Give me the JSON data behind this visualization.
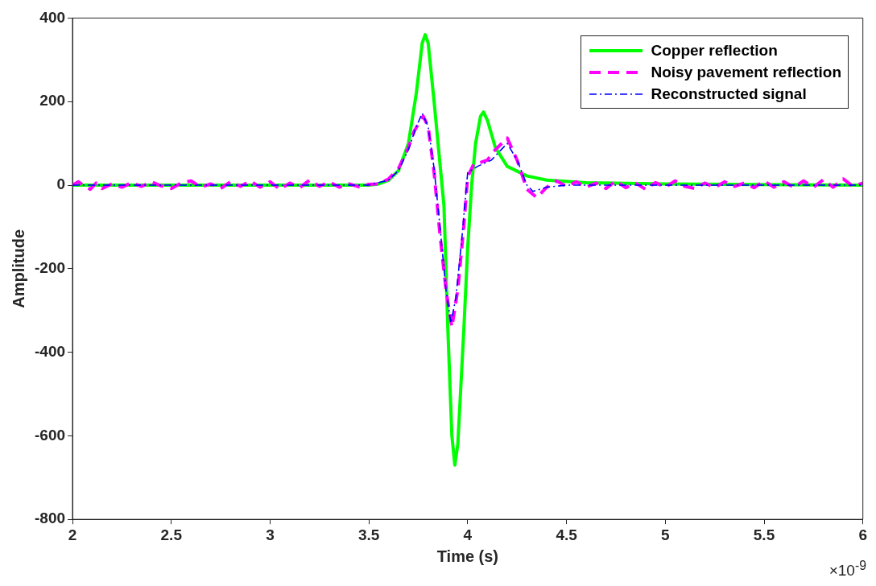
{
  "chart_data": {
    "type": "line",
    "xlabel": "Time (s)",
    "ylabel": "Amplitude",
    "annotations": [
      "×10$^{-9}$"
    ],
    "xlim": [
      2,
      6
    ],
    "xticks": [
      2,
      2.5,
      3,
      3.5,
      4,
      4.5,
      5,
      5.5,
      6
    ],
    "ylim": [
      -800,
      400
    ],
    "yticks": [
      -800,
      -600,
      -400,
      -200,
      0,
      200,
      400
    ],
    "grid": false,
    "legend": "top right",
    "marker": "none",
    "series": [
      {
        "name": "Copper reflection",
        "color": "#00ff00",
        "line_style": "solid",
        "x": [
          2,
          3.5,
          3.55,
          3.6,
          3.65,
          3.7,
          3.74,
          3.77,
          3.785,
          3.8,
          3.83,
          3.86,
          3.88,
          3.9,
          3.92,
          3.935,
          3.95,
          3.98,
          4.0,
          4.02,
          4.04,
          4.065,
          4.08,
          4.1,
          4.14,
          4.2,
          4.3,
          4.4,
          4.6,
          5,
          6
        ],
        "values": [
          0,
          0,
          3,
          12,
          35,
          100,
          220,
          340,
          360,
          340,
          200,
          50,
          -50,
          -350,
          -600,
          -670,
          -620,
          -350,
          -150,
          0,
          100,
          165,
          175,
          155,
          90,
          45,
          22,
          12,
          6,
          3,
          0
        ]
      },
      {
        "name": "Noisy pavement reflection",
        "color": "#ff00ff",
        "line_style": "dashed",
        "x": [
          2,
          2.03,
          2.06,
          2.09,
          2.12,
          2.15,
          2.2,
          2.25,
          2.3,
          2.35,
          2.4,
          2.45,
          2.5,
          2.55,
          2.6,
          2.65,
          2.7,
          2.75,
          2.8,
          2.85,
          2.9,
          2.95,
          3.0,
          3.05,
          3.1,
          3.15,
          3.2,
          3.25,
          3.3,
          3.35,
          3.4,
          3.45,
          3.5,
          3.55,
          3.6,
          3.65,
          3.7,
          3.73,
          3.775,
          3.8,
          3.83,
          3.86,
          3.89,
          3.92,
          3.95,
          3.98,
          4.0,
          4.03,
          4.07,
          4.1,
          4.13,
          4.2,
          4.25,
          4.3,
          4.35,
          4.4,
          4.45,
          4.5,
          4.55,
          4.6,
          4.65,
          4.7,
          4.75,
          4.8,
          4.85,
          4.9,
          4.95,
          5.0,
          5.05,
          5.1,
          5.15,
          5.2,
          5.25,
          5.3,
          5.35,
          5.4,
          5.45,
          5.5,
          5.55,
          5.6,
          5.65,
          5.7,
          5.75,
          5.8,
          5.85,
          5.9,
          5.95,
          6.0
        ],
        "values": [
          0,
          8,
          -2,
          -10,
          5,
          -8,
          3,
          -5,
          6,
          -3,
          8,
          -2,
          -8,
          5,
          10,
          -5,
          3,
          -8,
          8,
          -3,
          10,
          -5,
          8,
          -10,
          5,
          -6,
          12,
          -3,
          8,
          -5,
          3,
          -4,
          2,
          3,
          15,
          40,
          90,
          130,
          165,
          140,
          30,
          -120,
          -250,
          -340,
          -250,
          -100,
          20,
          50,
          55,
          60,
          80,
          113,
          60,
          -10,
          -30,
          -5,
          10,
          -3,
          8,
          -5,
          5,
          -8,
          10,
          -6,
          5,
          -10,
          6,
          -5,
          10,
          -3,
          -8,
          5,
          -6,
          8,
          -3,
          5,
          -6,
          10,
          -5,
          8,
          -5,
          10,
          -5,
          13,
          -5,
          15,
          -3,
          5
        ]
      },
      {
        "name": "Reconstructed signal",
        "color": "#0000ff",
        "line_style": "dashdot",
        "x": [
          2,
          3.5,
          3.6,
          3.65,
          3.7,
          3.74,
          3.77,
          3.8,
          3.83,
          3.86,
          3.89,
          3.915,
          3.94,
          3.97,
          4.0,
          4.05,
          4.12,
          4.2,
          4.25,
          4.3,
          4.33,
          4.4,
          4.5,
          6
        ],
        "values": [
          0,
          0,
          12,
          35,
          85,
          140,
          172,
          140,
          40,
          -100,
          -250,
          -330,
          -270,
          -130,
          30,
          45,
          60,
          100,
          60,
          0,
          -15,
          -5,
          0,
          0
        ]
      }
    ]
  }
}
